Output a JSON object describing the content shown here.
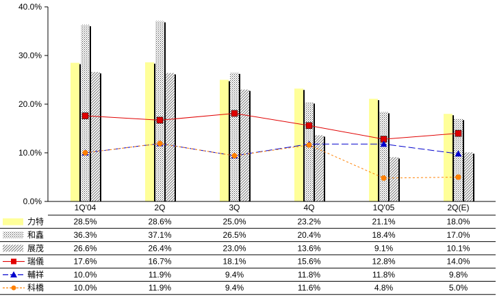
{
  "chart_data": {
    "type": "bar",
    "categories": [
      "1Q'04",
      "2Q",
      "3Q",
      "4Q",
      "1Q'05",
      "2Q(E)"
    ],
    "yticks": [
      "0.0%",
      "10.0%",
      "20.0%",
      "30.0%",
      "40.0%"
    ],
    "ylim": [
      0,
      40
    ],
    "bar_series": [
      {
        "name": "力特",
        "values": [
          28.5,
          28.6,
          25.0,
          23.2,
          21.1,
          18.0
        ],
        "labels": [
          "28.5%",
          "28.6%",
          "25.0%",
          "23.2%",
          "21.1%",
          "18.0%"
        ],
        "color": "#ffff99",
        "pattern": "solid"
      },
      {
        "name": "和鑫",
        "values": [
          36.3,
          37.1,
          26.5,
          20.4,
          18.4,
          17.0
        ],
        "labels": [
          "36.3%",
          "37.1%",
          "26.5%",
          "20.4%",
          "18.4%",
          "17.0%"
        ],
        "color": "#8c8c8c",
        "pattern": "dots"
      },
      {
        "name": "展茂",
        "values": [
          26.6,
          26.4,
          23.0,
          13.6,
          9.1,
          10.1
        ],
        "labels": [
          "26.6%",
          "26.4%",
          "23.0%",
          "13.6%",
          "9.1%",
          "10.1%"
        ],
        "color": "#a0a0a0",
        "pattern": "diag"
      }
    ],
    "line_series": [
      {
        "name": "瑞儀",
        "values": [
          17.6,
          16.7,
          18.1,
          15.6,
          12.8,
          14.0
        ],
        "labels": [
          "17.6%",
          "16.7%",
          "18.1%",
          "15.6%",
          "12.8%",
          "14.0%"
        ],
        "color": "#e00000",
        "marker": "square",
        "dash": "solid"
      },
      {
        "name": "輔祥",
        "values": [
          10.0,
          11.9,
          9.4,
          11.8,
          11.8,
          9.8
        ],
        "labels": [
          "10.0%",
          "11.9%",
          "9.4%",
          "11.8%",
          "11.8%",
          "9.8%"
        ],
        "color": "#0000cc",
        "marker": "triangle",
        "dash": "long"
      },
      {
        "name": "科橋",
        "values": [
          10.0,
          11.9,
          9.4,
          11.6,
          4.8,
          5.0
        ],
        "labels": [
          "10.0%",
          "11.9%",
          "9.4%",
          "11.6%",
          "4.8%",
          "5.0%"
        ],
        "color": "#ff8000",
        "marker": "circle",
        "dash": "dot"
      }
    ]
  }
}
